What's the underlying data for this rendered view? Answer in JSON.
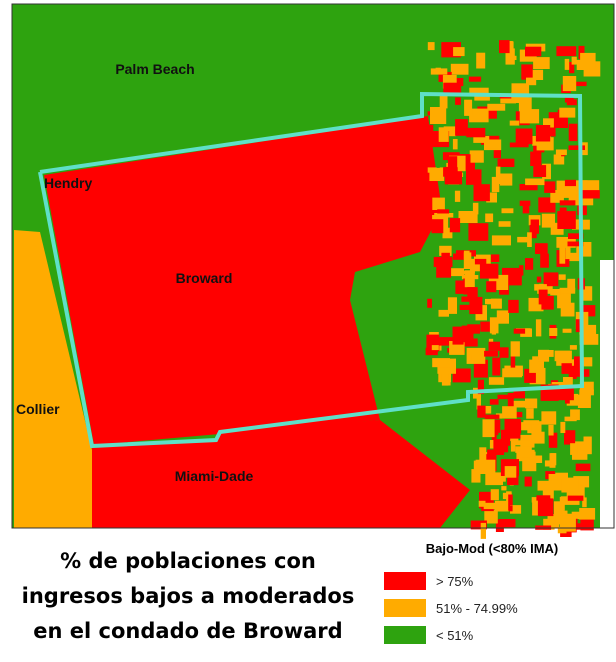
{
  "map": {
    "counties": [
      "Palm Beach",
      "Hendry",
      "Broward",
      "Collier",
      "Miami-Dade"
    ],
    "title_lines": [
      "% de poblaciones con",
      "ingresos bajos a moderados",
      "en el condado de Broward"
    ],
    "legend": {
      "title": "Bajo-Mod (<80% IMA)",
      "items": [
        {
          "label": "> 75%",
          "color": "#ff0000"
        },
        {
          "label": "51% - 74.99%",
          "color": "#ffab00"
        },
        {
          "label": "< 51%",
          "color": "#2ea30f"
        }
      ]
    }
  }
}
